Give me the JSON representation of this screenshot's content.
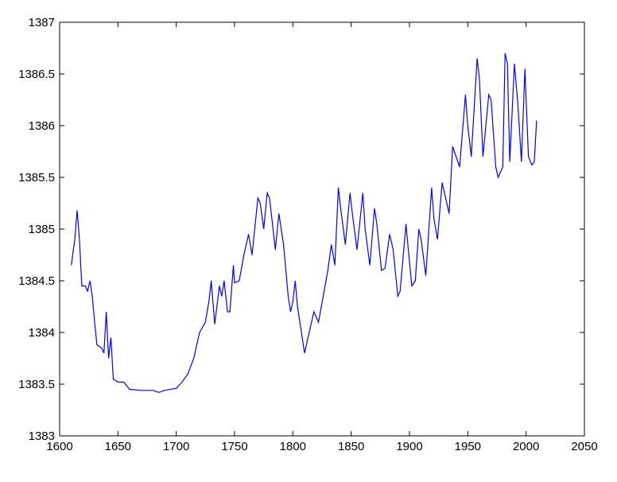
{
  "chart_data": {
    "type": "line",
    "x": [
      1610,
      1613,
      1615,
      1617,
      1619,
      1622,
      1624,
      1626,
      1628,
      1630,
      1632,
      1636,
      1638,
      1640,
      1642,
      1644,
      1646,
      1650,
      1655,
      1660,
      1670,
      1680,
      1685,
      1690,
      1700,
      1705,
      1710,
      1715,
      1720,
      1725,
      1728,
      1730,
      1733,
      1737,
      1739,
      1741,
      1744,
      1746,
      1749,
      1750,
      1754,
      1758,
      1762,
      1765,
      1770,
      1772,
      1775,
      1778,
      1780,
      1785,
      1788,
      1792,
      1796,
      1798,
      1800,
      1802,
      1804,
      1808,
      1810,
      1815,
      1818,
      1822,
      1826,
      1830,
      1833,
      1836,
      1839,
      1841,
      1845,
      1849,
      1851,
      1855,
      1860,
      1862,
      1866,
      1870,
      1872,
      1876,
      1879,
      1883,
      1886,
      1890,
      1892,
      1897,
      1899,
      1902,
      1905,
      1908,
      1910,
      1914,
      1919,
      1921,
      1924,
      1928,
      1930,
      1934,
      1937,
      1940,
      1943,
      1948,
      1950,
      1953,
      1958,
      1960,
      1963,
      1968,
      1970,
      1974,
      1976,
      1980,
      1982,
      1984,
      1986,
      1990,
      1993,
      1996,
      1999,
      2002,
      2005,
      2007,
      2009
    ],
    "series": [
      {
        "color": "#0000ff",
        "values": [
          1384.65,
          1384.9,
          1385.18,
          1384.9,
          1384.45,
          1384.45,
          1384.4,
          1384.5,
          1384.35,
          1384.1,
          1383.88,
          1383.85,
          1383.8,
          1384.2,
          1383.75,
          1383.95,
          1383.55,
          1383.52,
          1383.52,
          1383.45,
          1383.44,
          1383.44,
          1383.42,
          1383.44,
          1383.46,
          1383.52,
          1383.6,
          1383.75,
          1384.0,
          1384.1,
          1384.3,
          1384.5,
          1384.08,
          1384.45,
          1384.35,
          1384.5,
          1384.2,
          1384.2,
          1384.65,
          1384.48,
          1384.5,
          1384.75,
          1384.95,
          1384.75,
          1385.3,
          1385.25,
          1385.0,
          1385.35,
          1385.3,
          1384.8,
          1385.15,
          1384.85,
          1384.35,
          1384.2,
          1384.3,
          1384.5,
          1384.25,
          1383.95,
          1383.8,
          1384.05,
          1384.2,
          1384.1,
          1384.35,
          1384.6,
          1384.85,
          1384.65,
          1385.4,
          1385.2,
          1384.85,
          1385.35,
          1385.15,
          1384.8,
          1385.35,
          1385.0,
          1384.65,
          1385.2,
          1385.05,
          1384.6,
          1384.62,
          1384.95,
          1384.8,
          1384.35,
          1384.4,
          1385.05,
          1384.8,
          1384.45,
          1384.5,
          1385.0,
          1384.9,
          1384.55,
          1385.4,
          1385.1,
          1384.9,
          1385.45,
          1385.35,
          1385.15,
          1385.8,
          1385.7,
          1385.6,
          1386.3,
          1386.0,
          1385.7,
          1386.65,
          1386.45,
          1385.7,
          1386.3,
          1386.25,
          1385.6,
          1385.5,
          1385.6,
          1386.7,
          1386.6,
          1385.65,
          1386.6,
          1386.2,
          1385.65,
          1386.55,
          1385.7,
          1385.62,
          1385.65,
          1386.05
        ]
      }
    ],
    "xlim": [
      1600,
      2050
    ],
    "xticks": [
      1600,
      1650,
      1700,
      1750,
      1800,
      1850,
      1900,
      1950,
      2000,
      2050
    ],
    "ylim": [
      1383,
      1387
    ],
    "yticks": [
      1383,
      1383.5,
      1384,
      1384.5,
      1385,
      1385.5,
      1386,
      1386.5,
      1387
    ]
  }
}
